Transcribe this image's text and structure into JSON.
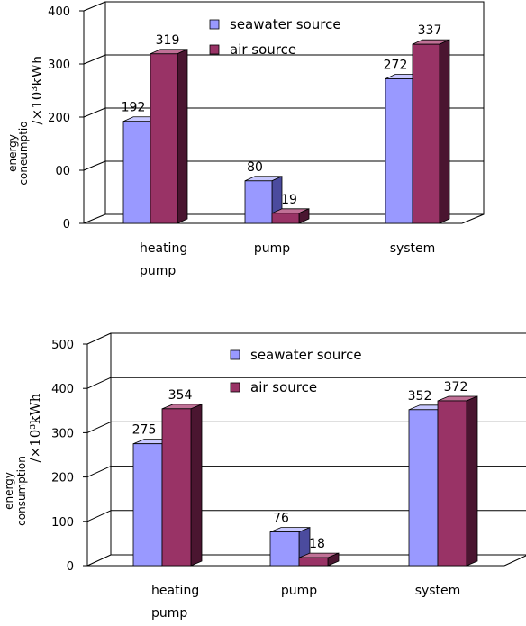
{
  "colors": {
    "seawater_front": "#9999ff",
    "seawater_side": "#4b4b9e",
    "seawater_top": "#c8c8ff",
    "air_front": "#993366",
    "air_side": "#4a1530",
    "air_top": "#c07096"
  },
  "chart_data": [
    {
      "type": "bar",
      "categories": [
        "heating pump",
        "pump",
        "system"
      ],
      "series": [
        {
          "name": "seawater source",
          "values": [
            192,
            80,
            272
          ]
        },
        {
          "name": "air source",
          "values": [
            319,
            19,
            337
          ]
        }
      ],
      "ylim": [
        0,
        400
      ],
      "yticks": [
        "0",
        "00",
        "200",
        "300",
        "400"
      ],
      "data_labels": {
        "seawater source": [
          "192",
          "80",
          "272"
        ],
        "air source": [
          "319",
          "19",
          "337"
        ]
      },
      "ylabel_line1": "energy",
      "ylabel_line2": "coneumptio",
      "ylabel_unit": "/×10³kWh",
      "grid": true,
      "legend_position": "top-center",
      "style": "3d-clustered"
    },
    {
      "type": "bar",
      "categories": [
        "heating pump",
        "pump",
        "system"
      ],
      "series": [
        {
          "name": "seawater source",
          "values": [
            275,
            76,
            352
          ]
        },
        {
          "name": "air source",
          "values": [
            354,
            18,
            372
          ]
        }
      ],
      "ylim": [
        0,
        500
      ],
      "yticks": [
        "0",
        "100",
        "200",
        "300",
        "400",
        "500"
      ],
      "data_labels": {
        "seawater source": [
          "275",
          "76",
          "352"
        ],
        "air source": [
          "354",
          "18",
          "372"
        ]
      },
      "ylabel_line1": "energy",
      "ylabel_line2": "consumption",
      "ylabel_unit": "/×10³kWh",
      "grid": true,
      "legend_position": "top-center",
      "style": "3d-clustered"
    }
  ]
}
